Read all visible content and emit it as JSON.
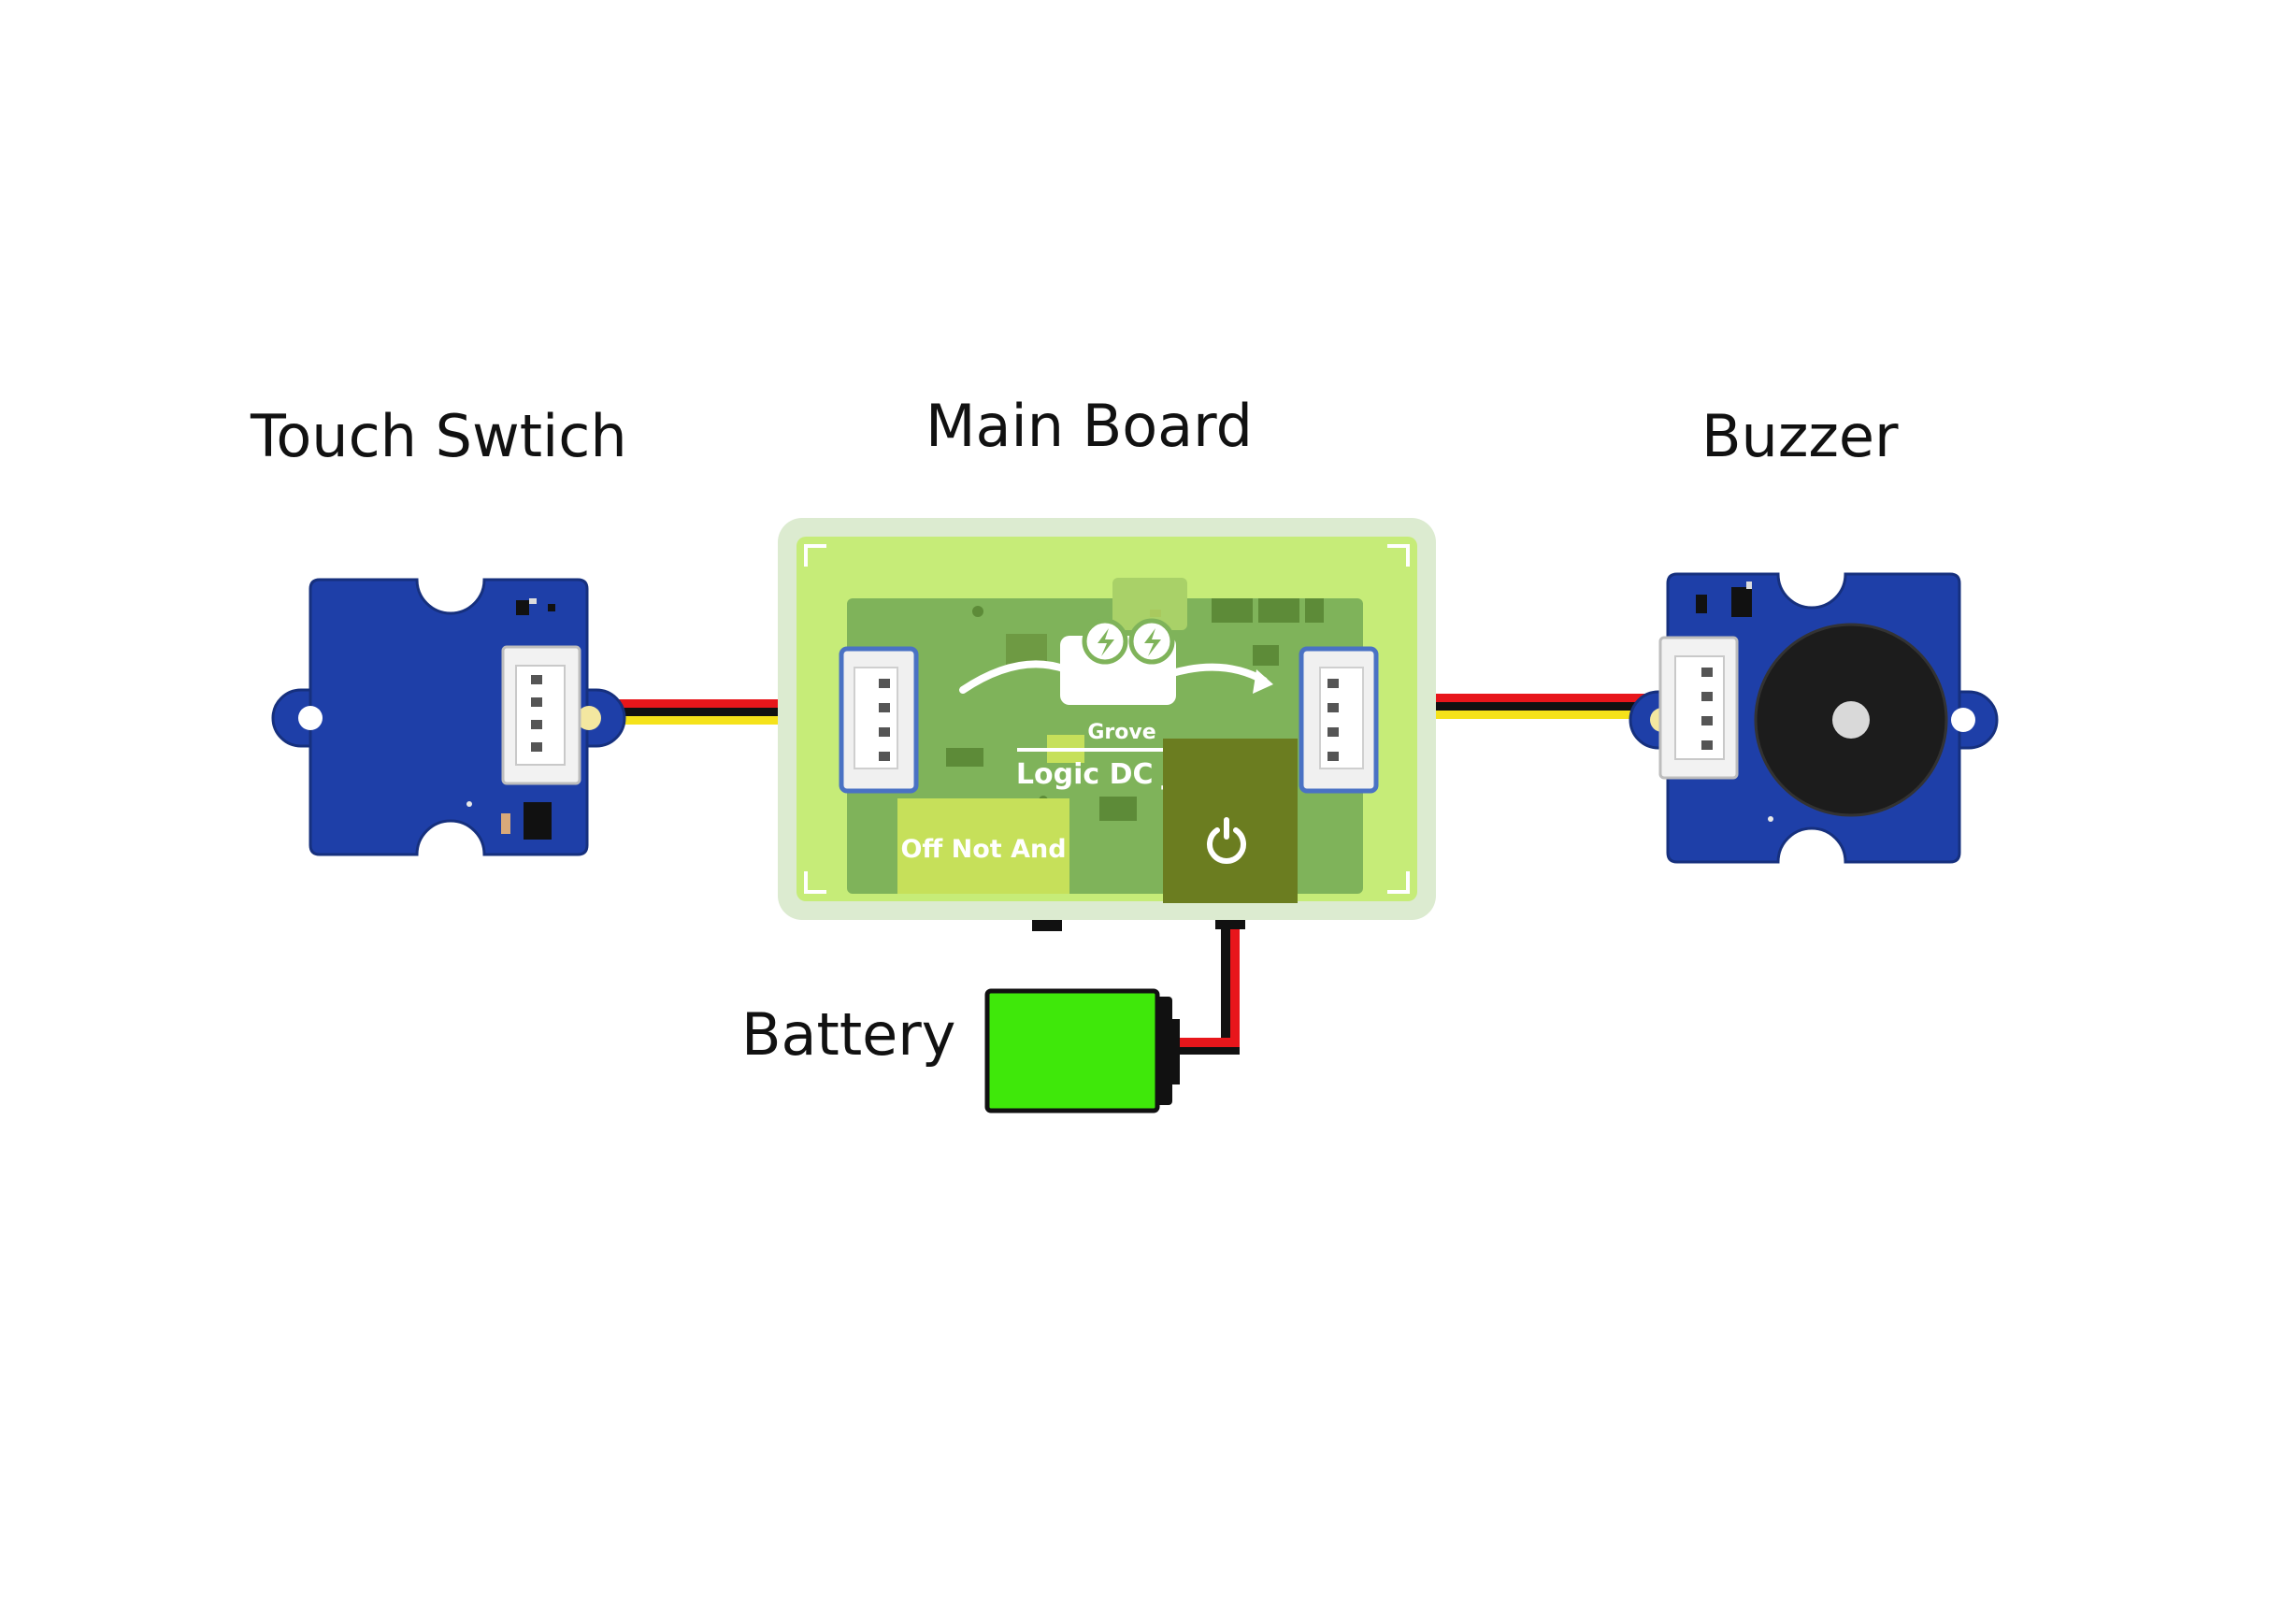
{
  "labels": {
    "touch_switch": "Touch Swtich",
    "main_board": "Main Board",
    "buzzer": "Buzzer",
    "battery": "Battery"
  },
  "board": {
    "brand": "Grove",
    "title": "Logic DC Jack",
    "modes": "Off Not And"
  },
  "colors": {
    "module_blue": "#1e3fa8",
    "board_frame": "#dcebd0",
    "board_light": "#c6ec78",
    "pcb_green": "#7fb35a",
    "battery_green": "#3fe80a",
    "wire_red": "#e8161b",
    "wire_black": "#111111",
    "wire_yellow": "#f5e21a"
  },
  "icons": [
    "power-icon",
    "lightning-icon"
  ]
}
